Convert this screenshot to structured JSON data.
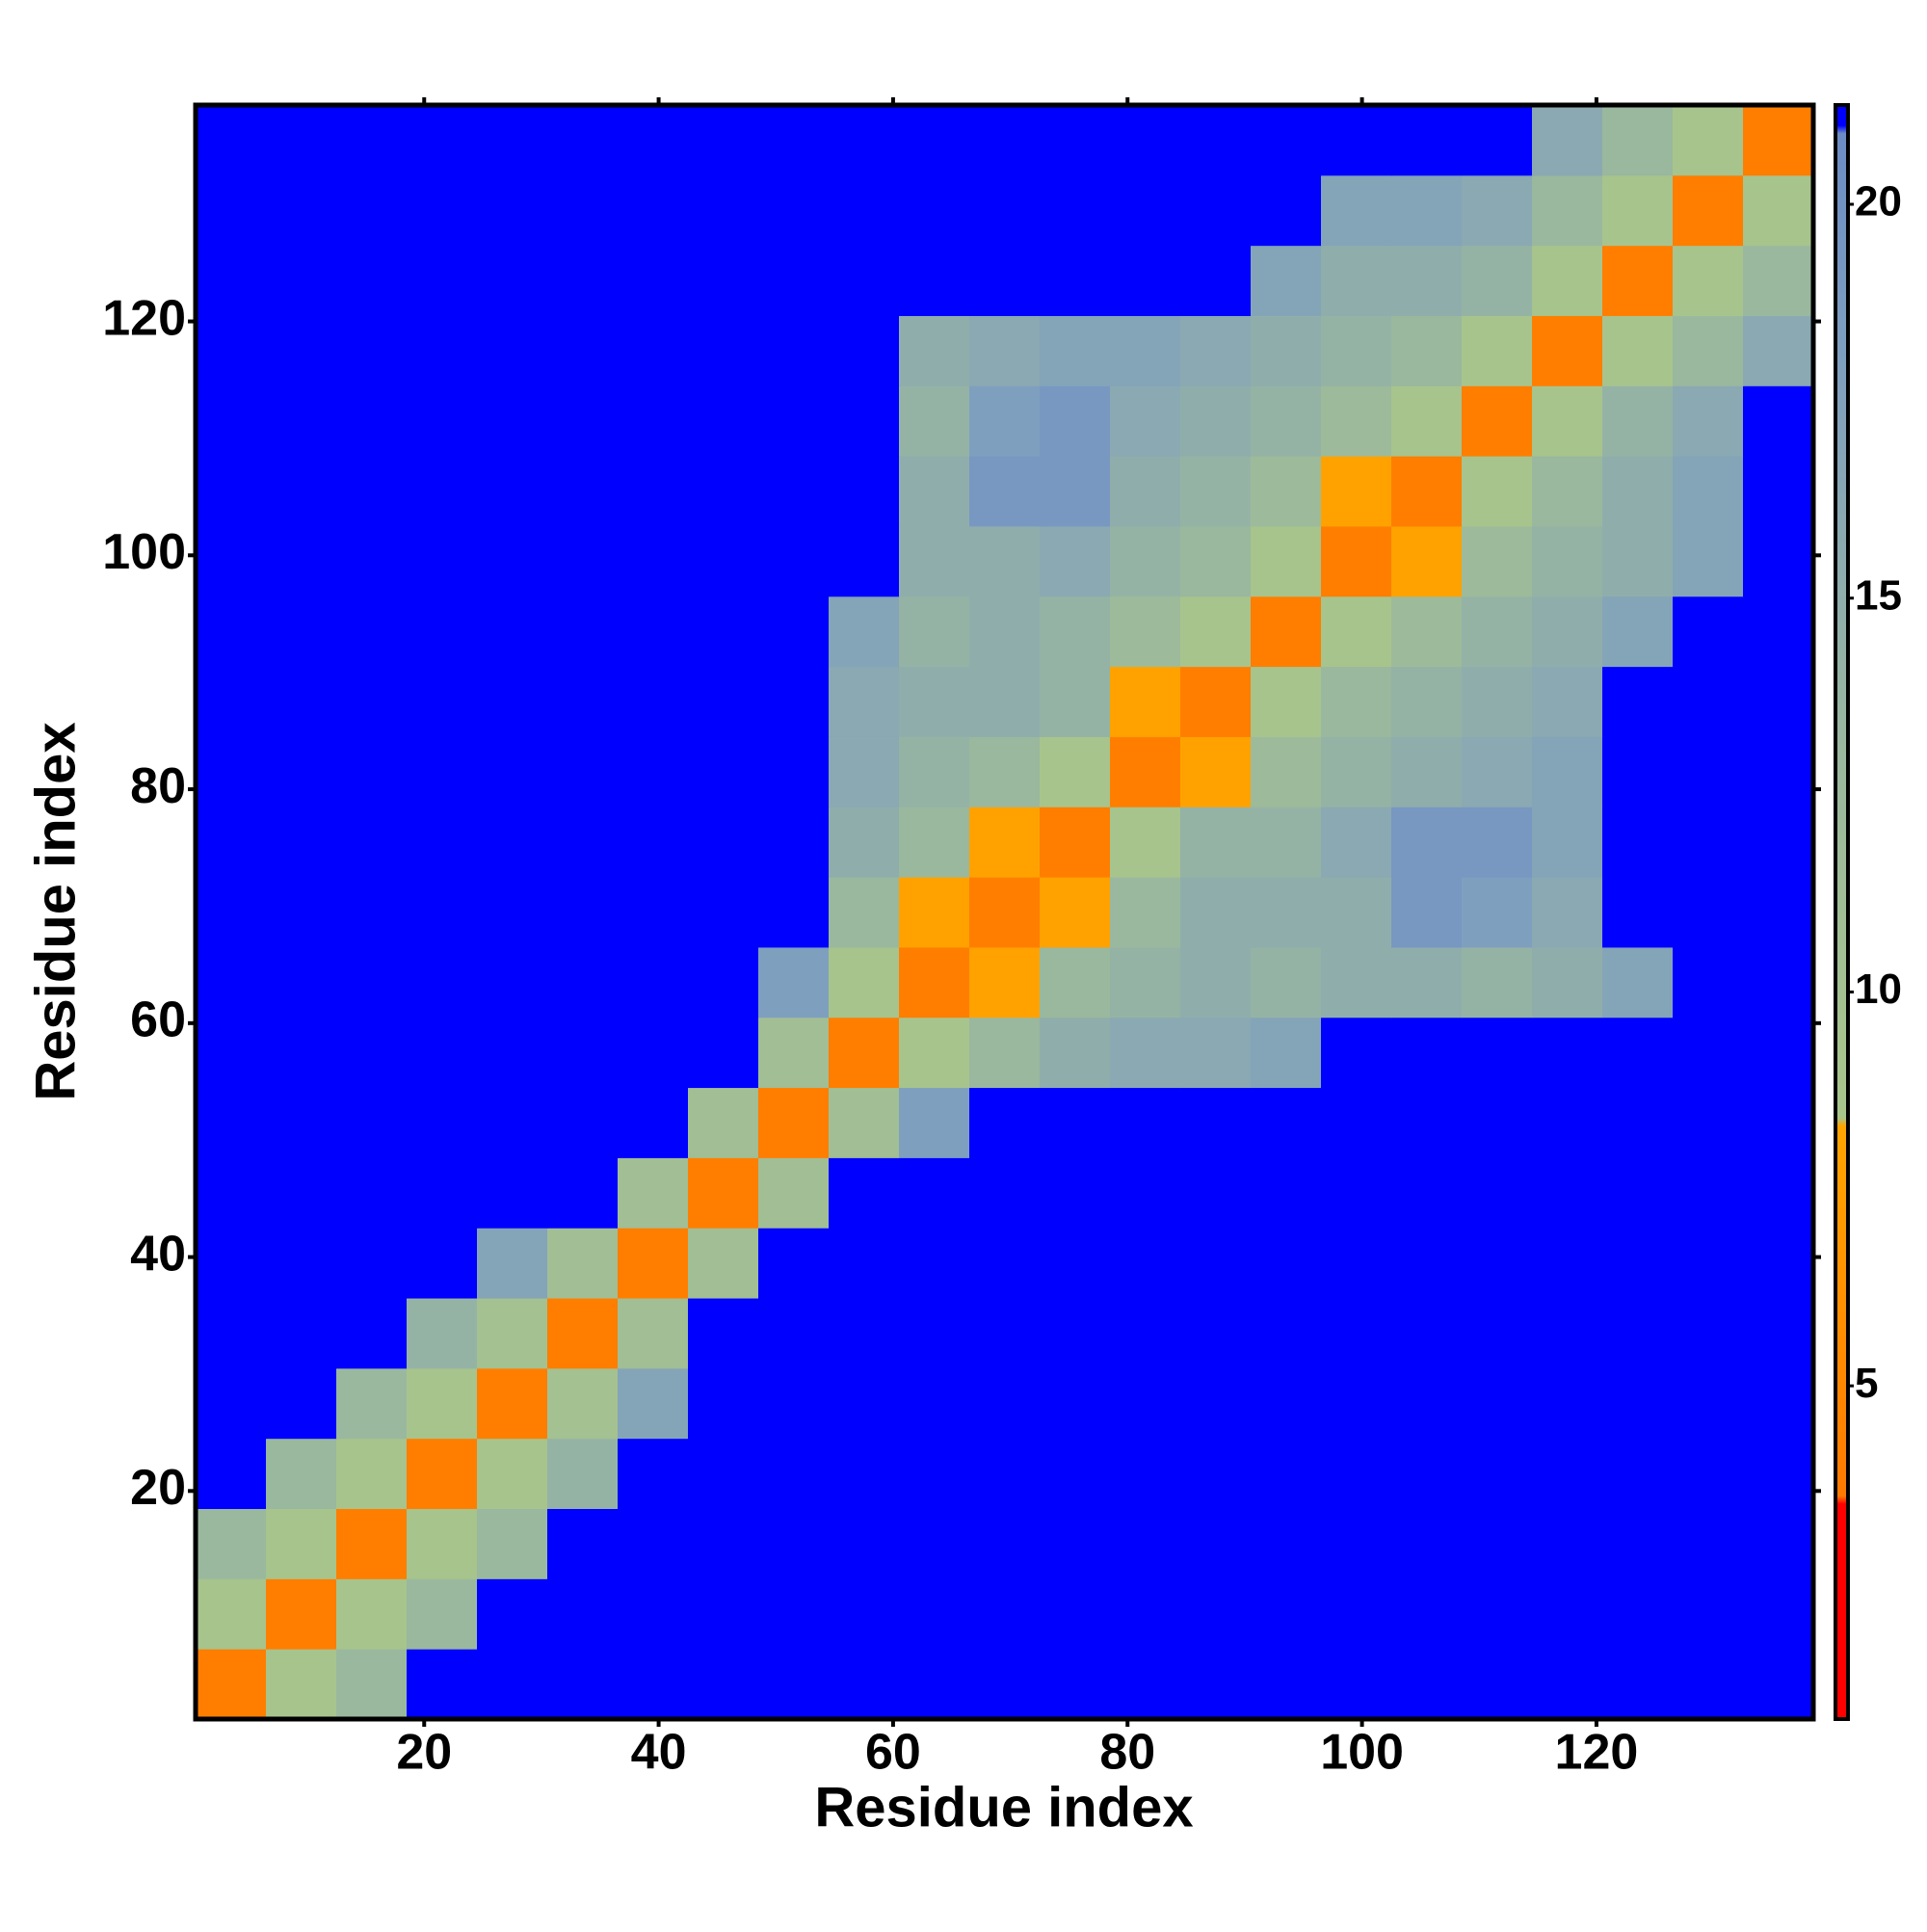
{
  "chart_data": {
    "type": "heatmap",
    "x_label": "Residue index",
    "y_label": "Residue index",
    "xlim": [
      0.5,
      138.5
    ],
    "ylim": [
      0.5,
      138.5
    ],
    "xticks": [
      20,
      40,
      60,
      80,
      100,
      120
    ],
    "yticks": [
      20,
      40,
      60,
      80,
      100,
      120
    ],
    "bins": [
      0.5,
      6.5,
      12.5,
      18.5,
      24.5,
      30.5,
      36.5,
      42.5,
      48.5,
      54.5,
      60.5,
      66.5,
      72.5,
      78.5,
      84.5,
      90.5,
      96.5,
      102.5,
      108.5,
      114.5,
      120.5,
      126.5,
      132.5,
      138.5
    ],
    "z": [
      [
        4,
        9,
        13,
        21,
        21,
        21,
        21,
        21,
        21,
        21,
        21,
        21,
        21,
        21,
        21,
        21,
        21,
        21,
        21,
        21,
        21,
        21,
        21
      ],
      [
        9,
        4,
        9,
        13,
        21,
        21,
        21,
        21,
        21,
        21,
        21,
        21,
        21,
        21,
        21,
        21,
        21,
        21,
        21,
        21,
        21,
        21,
        21
      ],
      [
        13,
        9,
        4,
        9,
        13,
        21,
        21,
        21,
        21,
        21,
        21,
        21,
        21,
        21,
        21,
        21,
        21,
        21,
        21,
        21,
        21,
        21,
        21
      ],
      [
        21,
        13,
        9,
        4,
        9,
        14,
        21,
        21,
        21,
        21,
        21,
        21,
        21,
        21,
        21,
        21,
        21,
        21,
        21,
        21,
        21,
        21,
        21
      ],
      [
        21,
        21,
        13,
        9,
        4,
        10,
        17,
        21,
        21,
        21,
        21,
        21,
        21,
        21,
        21,
        21,
        21,
        21,
        21,
        21,
        21,
        21,
        21
      ],
      [
        21,
        21,
        21,
        14,
        10,
        4,
        11,
        21,
        21,
        21,
        21,
        21,
        21,
        21,
        21,
        21,
        21,
        21,
        21,
        21,
        21,
        21,
        21
      ],
      [
        21,
        21,
        21,
        21,
        17,
        11,
        4,
        11,
        21,
        21,
        21,
        21,
        21,
        21,
        21,
        21,
        21,
        21,
        21,
        21,
        21,
        21,
        21
      ],
      [
        21,
        21,
        21,
        21,
        21,
        21,
        11,
        4,
        11,
        21,
        21,
        21,
        21,
        21,
        21,
        21,
        21,
        21,
        21,
        21,
        21,
        21,
        21
      ],
      [
        21,
        21,
        21,
        21,
        21,
        21,
        21,
        11,
        4,
        11,
        18,
        21,
        21,
        21,
        21,
        21,
        21,
        21,
        21,
        21,
        21,
        21,
        21
      ],
      [
        21,
        21,
        21,
        21,
        21,
        21,
        21,
        21,
        11,
        4,
        9,
        13,
        15,
        16,
        16,
        17,
        21,
        21,
        21,
        21,
        21,
        21,
        21
      ],
      [
        21,
        21,
        21,
        21,
        21,
        21,
        21,
        21,
        18,
        9,
        4,
        8,
        13,
        14,
        15,
        14,
        15,
        15,
        14,
        15,
        17,
        21,
        21
      ],
      [
        21,
        21,
        21,
        21,
        21,
        21,
        21,
        21,
        21,
        13,
        8,
        4,
        8,
        13,
        15,
        15,
        15,
        19,
        18,
        16,
        21,
        21,
        21
      ],
      [
        21,
        21,
        21,
        21,
        21,
        21,
        21,
        21,
        21,
        15,
        13,
        8,
        4,
        9,
        14,
        14,
        16,
        19,
        19,
        17,
        21,
        21,
        21
      ],
      [
        21,
        21,
        21,
        21,
        21,
        21,
        21,
        21,
        21,
        16,
        14,
        13,
        9,
        4,
        8,
        12,
        14,
        15,
        16,
        17,
        21,
        21,
        21
      ],
      [
        21,
        21,
        21,
        21,
        21,
        21,
        21,
        21,
        21,
        16,
        15,
        15,
        14,
        8,
        4,
        9,
        13,
        14,
        15,
        16,
        21,
        21,
        21
      ],
      [
        21,
        21,
        21,
        21,
        21,
        21,
        21,
        21,
        21,
        17,
        14,
        15,
        14,
        12,
        9,
        4,
        9,
        12,
        14,
        15,
        17,
        21,
        21
      ],
      [
        21,
        21,
        21,
        21,
        21,
        21,
        21,
        21,
        21,
        21,
        15,
        15,
        16,
        14,
        13,
        9,
        4,
        8,
        12,
        14,
        15,
        17,
        21
      ],
      [
        21,
        21,
        21,
        21,
        21,
        21,
        21,
        21,
        21,
        21,
        15,
        19,
        19,
        15,
        14,
        12,
        8,
        4,
        9,
        13,
        15,
        17,
        21
      ],
      [
        21,
        21,
        21,
        21,
        21,
        21,
        21,
        21,
        21,
        21,
        14,
        18,
        19,
        16,
        15,
        14,
        12,
        9,
        4,
        9,
        14,
        16,
        21
      ],
      [
        21,
        21,
        21,
        21,
        21,
        21,
        21,
        21,
        21,
        21,
        15,
        16,
        17,
        17,
        16,
        15,
        14,
        13,
        9,
        4,
        9,
        13,
        16
      ],
      [
        21,
        21,
        21,
        21,
        21,
        21,
        21,
        21,
        21,
        21,
        21,
        21,
        21,
        21,
        21,
        17,
        15,
        15,
        14,
        9,
        4,
        9,
        13
      ],
      [
        21,
        21,
        21,
        21,
        21,
        21,
        21,
        21,
        21,
        21,
        21,
        21,
        21,
        21,
        21,
        21,
        17,
        17,
        16,
        13,
        9,
        4,
        9
      ],
      [
        21,
        21,
        21,
        21,
        21,
        21,
        21,
        21,
        21,
        21,
        21,
        21,
        21,
        21,
        21,
        21,
        21,
        21,
        21,
        16,
        13,
        9,
        4
      ]
    ],
    "clim": [
      0.77,
      21.26
    ],
    "cticks": [
      5,
      10,
      15,
      20
    ],
    "colorscale": [
      [
        0.77,
        "#ff0000"
      ],
      [
        3.5,
        "#ff0000"
      ],
      [
        3.6,
        "#ff7a00"
      ],
      [
        8.3,
        "#ffa500"
      ],
      [
        8.4,
        "#a9c68a"
      ],
      [
        13,
        "#9ab89e"
      ],
      [
        18,
        "#7f9fbf"
      ],
      [
        20.9,
        "#6c8cc4"
      ],
      [
        21,
        "#0000ff"
      ],
      [
        21.26,
        "#0000ff"
      ]
    ]
  }
}
